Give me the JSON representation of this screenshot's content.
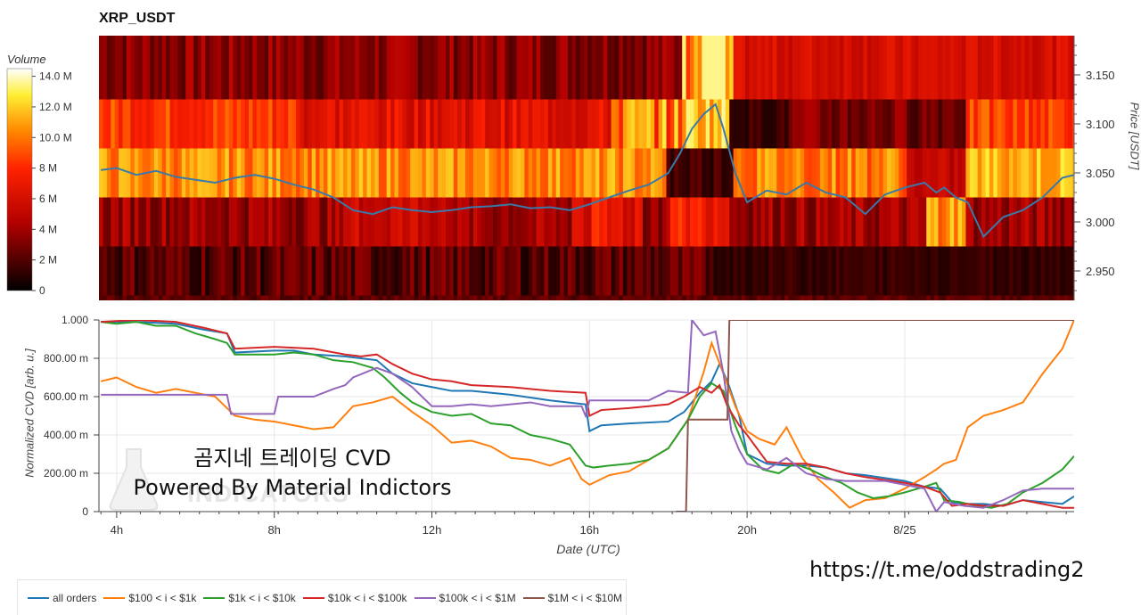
{
  "title": "XRP_USDT",
  "colorbar": {
    "title": "Volume",
    "ticks": [
      {
        "label": "14.0 M",
        "value": 14
      },
      {
        "label": "12.0 M",
        "value": 12
      },
      {
        "label": "10.0 M",
        "value": 10
      },
      {
        "label": "8 M",
        "value": 8
      },
      {
        "label": "6 M",
        "value": 6
      },
      {
        "label": "4 M",
        "value": 4
      },
      {
        "label": "2 M",
        "value": 2
      },
      {
        "label": "0",
        "value": 0
      }
    ]
  },
  "watermark": {
    "line1": "곰지네 트레이딩 CVD",
    "line2": "Powered By Material Indictors",
    "ghost": "INDICATORS"
  },
  "link": "https://t.me/oddstrading2",
  "chart_data": [
    {
      "type": "heatmap",
      "title": "XRP_USDT",
      "ylabel": "Price [USDT]",
      "y_ticks": [
        "3.150",
        "3.100",
        "3.050",
        "3.000",
        "2.950"
      ],
      "y_tick_values": [
        3.15,
        3.1,
        3.05,
        3.0,
        2.95
      ],
      "ylim": [
        2.92,
        3.19
      ],
      "x_range_hours": [
        3.55,
        28.3
      ],
      "price_bins": [
        {
          "low": 3.125,
          "high": 3.19,
          "base": 3.5,
          "profile": "upper"
        },
        {
          "low": 3.075,
          "high": 3.125,
          "base": 8.5,
          "profile": "mid_high"
        },
        {
          "low": 3.025,
          "high": 3.075,
          "base": 10.5,
          "profile": "main"
        },
        {
          "low": 2.975,
          "high": 3.025,
          "base": 4.0,
          "profile": "lower"
        },
        {
          "low": 2.925,
          "high": 2.975,
          "base": 2.2,
          "profile": "low"
        },
        {
          "low": 2.92,
          "high": 2.925,
          "base": 1.8,
          "profile": "bottom"
        }
      ],
      "price_line": {
        "color": "#3a79a8",
        "x": [
          3.6,
          4.0,
          4.5,
          5.0,
          5.5,
          6.0,
          6.5,
          7.0,
          7.5,
          8.0,
          8.5,
          9.0,
          9.5,
          10.0,
          10.5,
          11.0,
          11.5,
          12.0,
          12.5,
          13.0,
          13.5,
          14.0,
          14.5,
          15.0,
          15.5,
          16.0,
          16.5,
          17.0,
          17.5,
          17.8,
          18.0,
          18.3,
          18.6,
          18.9,
          19.2,
          19.4,
          19.7,
          20.0,
          20.5,
          21.0,
          21.5,
          22.0,
          22.5,
          23.0,
          23.5,
          24.0,
          24.5,
          24.8,
          25.0,
          25.3,
          25.6,
          26.0,
          26.5,
          27.0,
          27.5,
          28.0,
          28.3
        ],
        "y": [
          3.053,
          3.055,
          3.048,
          3.052,
          3.046,
          3.043,
          3.04,
          3.045,
          3.048,
          3.044,
          3.038,
          3.033,
          3.025,
          3.012,
          3.008,
          3.015,
          3.012,
          3.01,
          3.012,
          3.015,
          3.016,
          3.018,
          3.014,
          3.015,
          3.012,
          3.018,
          3.025,
          3.032,
          3.038,
          3.045,
          3.05,
          3.07,
          3.095,
          3.11,
          3.12,
          3.095,
          3.05,
          3.02,
          3.032,
          3.028,
          3.04,
          3.03,
          3.025,
          3.008,
          3.028,
          3.035,
          3.04,
          3.03,
          3.035,
          3.025,
          3.02,
          2.985,
          3.005,
          3.012,
          3.025,
          3.045,
          3.048
        ]
      }
    },
    {
      "type": "line",
      "ylabel": "Normalized CVD [arb. u.]",
      "xlabel": "Date (UTC)",
      "x_ticks": [
        {
          "label": "4h",
          "value": 4
        },
        {
          "label": "8h",
          "value": 8
        },
        {
          "label": "12h",
          "value": 12
        },
        {
          "label": "16h",
          "value": 16
        },
        {
          "label": "20h",
          "value": 20
        },
        {
          "label": "8/25",
          "value": 24
        }
      ],
      "y_ticks": [
        {
          "label": "1.000",
          "value": 1.0
        },
        {
          "label": "800.00 m",
          "value": 0.8
        },
        {
          "label": "600.00 m",
          "value": 0.6
        },
        {
          "label": "400.00 m",
          "value": 0.4
        },
        {
          "label": "200.00 m",
          "value": 0.2
        },
        {
          "label": "0",
          "value": 0.0
        }
      ],
      "xlim": [
        3.55,
        28.3
      ],
      "ylim": [
        0,
        1.0
      ],
      "grid": true,
      "legend_position": "bottom-left",
      "series": [
        {
          "name": "all orders",
          "color": "#1f77b4",
          "x": [
            3.6,
            4.5,
            5.5,
            6.2,
            6.8,
            7.0,
            8.0,
            8.5,
            9.0,
            9.8,
            10.2,
            10.6,
            11.0,
            11.5,
            12.0,
            12.5,
            13.0,
            14.0,
            15.0,
            15.9,
            16.0,
            16.3,
            17.0,
            18.0,
            18.4,
            18.8,
            19.1,
            19.3,
            19.5,
            19.8,
            20.0,
            20.5,
            21.0,
            21.5,
            22.0,
            22.5,
            23.0,
            24.0,
            24.5,
            24.9,
            25.2,
            25.6,
            26.0,
            26.5,
            27.0,
            27.5,
            28.0,
            28.3
          ],
          "y": [
            0.99,
            0.99,
            0.98,
            0.95,
            0.93,
            0.83,
            0.84,
            0.84,
            0.82,
            0.81,
            0.8,
            0.79,
            0.72,
            0.67,
            0.65,
            0.63,
            0.63,
            0.61,
            0.58,
            0.56,
            0.42,
            0.45,
            0.46,
            0.47,
            0.52,
            0.62,
            0.68,
            0.77,
            0.68,
            0.5,
            0.3,
            0.25,
            0.24,
            0.24,
            0.23,
            0.2,
            0.19,
            0.16,
            0.13,
            0.12,
            0.05,
            0.04,
            0.04,
            0.03,
            0.06,
            0.05,
            0.04,
            0.08
          ]
        },
        {
          "name": "$100 < i < $1k",
          "color": "#ff7f0e",
          "x": [
            3.6,
            4.0,
            4.5,
            5.0,
            5.5,
            6.0,
            6.5,
            7.0,
            7.5,
            8.0,
            8.5,
            9.0,
            9.5,
            10.0,
            10.5,
            11.0,
            11.5,
            12.0,
            12.5,
            13.0,
            13.5,
            14.0,
            14.5,
            15.0,
            15.5,
            15.8,
            16.0,
            16.5,
            17.0,
            17.5,
            18.0,
            18.5,
            18.9,
            19.1,
            19.4,
            19.7,
            20.0,
            20.3,
            20.7,
            21.0,
            21.4,
            21.8,
            22.2,
            22.6,
            23.0,
            23.5,
            24.0,
            24.5,
            24.8,
            25.0,
            25.3,
            25.6,
            26.0,
            26.5,
            27.0,
            27.5,
            28.0,
            28.3
          ],
          "y": [
            0.68,
            0.7,
            0.65,
            0.62,
            0.64,
            0.62,
            0.6,
            0.5,
            0.48,
            0.47,
            0.45,
            0.43,
            0.44,
            0.55,
            0.57,
            0.6,
            0.52,
            0.45,
            0.36,
            0.37,
            0.34,
            0.28,
            0.27,
            0.24,
            0.28,
            0.17,
            0.14,
            0.19,
            0.21,
            0.27,
            0.33,
            0.48,
            0.73,
            0.88,
            0.72,
            0.55,
            0.42,
            0.38,
            0.35,
            0.44,
            0.28,
            0.17,
            0.1,
            0.02,
            0.06,
            0.07,
            0.12,
            0.18,
            0.22,
            0.25,
            0.27,
            0.44,
            0.5,
            0.53,
            0.57,
            0.72,
            0.85,
            1.0
          ]
        },
        {
          "name": "$1k < i < $10k",
          "color": "#2ca02c",
          "x": [
            3.6,
            4.0,
            4.5,
            5.0,
            5.5,
            6.0,
            6.5,
            6.8,
            7.0,
            8.0,
            8.5,
            9.0,
            9.5,
            10.0,
            10.5,
            10.8,
            11.2,
            11.5,
            12.0,
            12.5,
            13.0,
            13.5,
            14.0,
            14.5,
            15.0,
            15.5,
            15.9,
            16.1,
            16.5,
            17.0,
            17.5,
            18.0,
            18.5,
            18.8,
            19.1,
            19.4,
            19.7,
            20.0,
            20.4,
            20.8,
            21.2,
            21.6,
            22.0,
            22.4,
            22.8,
            23.2,
            23.6,
            24.0,
            24.5,
            24.8,
            25.0,
            25.4,
            25.8,
            26.2,
            26.6,
            27.0,
            27.5,
            28.0,
            28.3
          ],
          "y": [
            0.99,
            0.98,
            0.99,
            0.97,
            0.97,
            0.93,
            0.9,
            0.88,
            0.82,
            0.82,
            0.83,
            0.82,
            0.79,
            0.78,
            0.75,
            0.7,
            0.62,
            0.57,
            0.52,
            0.5,
            0.51,
            0.46,
            0.45,
            0.4,
            0.38,
            0.35,
            0.24,
            0.23,
            0.24,
            0.25,
            0.27,
            0.33,
            0.48,
            0.6,
            0.67,
            0.63,
            0.45,
            0.3,
            0.22,
            0.2,
            0.25,
            0.22,
            0.18,
            0.15,
            0.1,
            0.07,
            0.08,
            0.1,
            0.13,
            0.15,
            0.06,
            0.05,
            0.03,
            0.02,
            0.04,
            0.1,
            0.15,
            0.22,
            0.29
          ]
        },
        {
          "name": "$10k < i < $100k",
          "color": "#d62728",
          "x": [
            3.6,
            4.5,
            5.5,
            6.2,
            6.8,
            7.0,
            8.0,
            9.0,
            9.8,
            10.2,
            10.6,
            11.0,
            11.5,
            12.0,
            12.5,
            13.0,
            14.0,
            15.0,
            15.9,
            16.0,
            16.3,
            17.0,
            18.0,
            18.4,
            18.8,
            19.1,
            19.3,
            19.5,
            19.8,
            20.0,
            20.5,
            21.0,
            21.5,
            22.0,
            22.5,
            23.0,
            24.0,
            24.5,
            24.9,
            25.2,
            25.6,
            26.0,
            26.5,
            27.0,
            27.5,
            28.0,
            28.3
          ],
          "y": [
            0.99,
            1.0,
            0.99,
            0.96,
            0.93,
            0.85,
            0.86,
            0.85,
            0.82,
            0.81,
            0.82,
            0.77,
            0.72,
            0.69,
            0.68,
            0.66,
            0.65,
            0.63,
            0.62,
            0.5,
            0.53,
            0.54,
            0.56,
            0.6,
            0.65,
            0.62,
            0.66,
            0.55,
            0.45,
            0.4,
            0.26,
            0.25,
            0.25,
            0.23,
            0.2,
            0.18,
            0.15,
            0.13,
            0.1,
            0.03,
            0.04,
            0.03,
            0.03,
            0.06,
            0.04,
            0.02,
            0.02
          ]
        },
        {
          "name": "$100k < i < $1M",
          "color": "#9467bd",
          "x": [
            3.6,
            6.8,
            6.9,
            8.0,
            8.1,
            9.0,
            9.5,
            9.8,
            10.0,
            10.6,
            11.0,
            11.5,
            12.0,
            12.5,
            13.0,
            13.5,
            14.5,
            15.0,
            15.8,
            15.9,
            16.0,
            17.5,
            17.9,
            18.0,
            18.5,
            18.6,
            18.9,
            19.2,
            19.4,
            19.6,
            19.8,
            20.0,
            20.5,
            21.0,
            21.5,
            22.0,
            22.5,
            23.0,
            23.5,
            24.0,
            24.5,
            24.8,
            25.0,
            25.5,
            26.0,
            26.5,
            27.0,
            27.5,
            28.0,
            28.3
          ],
          "y": [
            0.61,
            0.61,
            0.51,
            0.51,
            0.6,
            0.6,
            0.64,
            0.66,
            0.7,
            0.75,
            0.72,
            0.65,
            0.55,
            0.55,
            0.56,
            0.55,
            0.57,
            0.55,
            0.55,
            0.5,
            0.58,
            0.58,
            0.62,
            0.63,
            0.62,
            1.0,
            0.92,
            0.94,
            0.72,
            0.42,
            0.32,
            0.25,
            0.22,
            0.28,
            0.2,
            0.17,
            0.16,
            0.16,
            0.16,
            0.14,
            0.12,
            0.0,
            0.05,
            0.03,
            0.02,
            0.06,
            0.11,
            0.12,
            0.12,
            0.12
          ]
        },
        {
          "name": "$1M < i < $10M",
          "color": "#8c564b",
          "x": [
            18.2,
            18.45,
            18.5,
            19.5,
            19.55,
            19.7,
            28.3
          ],
          "y": [
            0.0,
            0.0,
            0.48,
            0.48,
            1.0,
            1.0,
            1.0
          ]
        }
      ]
    }
  ]
}
